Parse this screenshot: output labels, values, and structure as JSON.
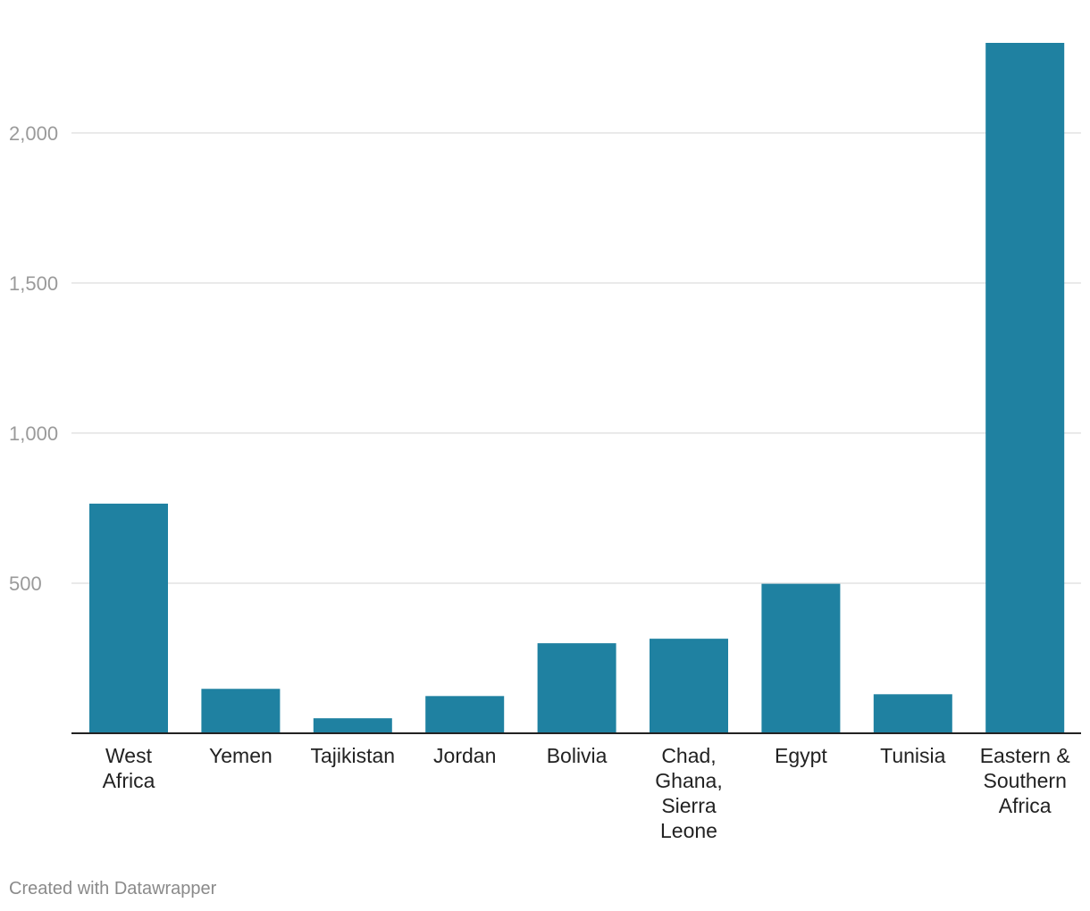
{
  "credit": "Created with Datawrapper",
  "colors": {
    "bar": "#1f81a1",
    "grid": "#e2e2e2",
    "baseline": "#222222",
    "tick_text": "#9a9a9a",
    "label_text": "#222222"
  },
  "chart_data": {
    "type": "bar",
    "categories": [
      [
        "West",
        "Africa"
      ],
      [
        "Yemen"
      ],
      [
        "Tajikistan"
      ],
      [
        "Jordan"
      ],
      [
        "Bolivia"
      ],
      [
        "Chad,",
        "Ghana,",
        "Sierra",
        "Leone"
      ],
      [
        "Egypt"
      ],
      [
        "Tunisia"
      ],
      [
        "Eastern &",
        "Southern",
        "Africa"
      ]
    ],
    "values": [
      765,
      148,
      50,
      124,
      300,
      315,
      498,
      130,
      2300
    ],
    "ylim": [
      0,
      2300
    ],
    "yticks": [
      500,
      1000,
      1500,
      2000
    ],
    "ytick_labels": [
      "500",
      "1,000",
      "1,500",
      "2,000"
    ],
    "grid": true,
    "title": "",
    "xlabel": "",
    "ylabel": ""
  }
}
